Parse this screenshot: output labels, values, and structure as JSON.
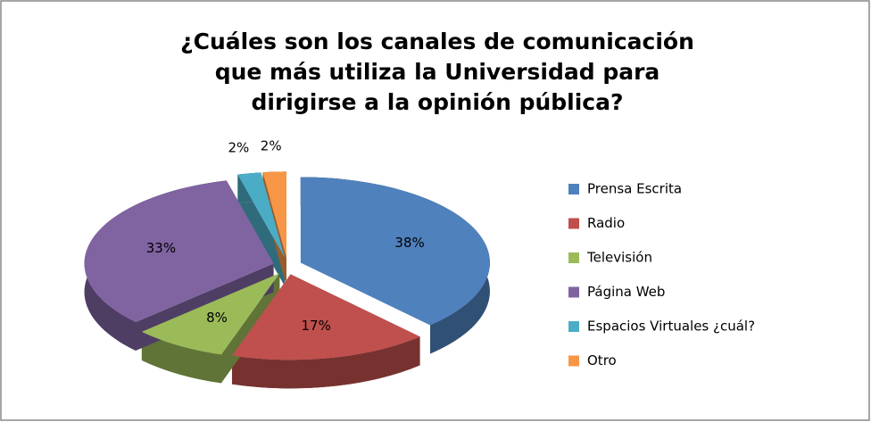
{
  "chart_data": {
    "type": "pie",
    "title": "¿Cuáles son los canales de comunicación que más utiliza la Universidad para dirigirse a la opinión pública?",
    "categories": [
      "Prensa Escrita",
      "Radio",
      "Televisión",
      "Página Web",
      "Espacios Virtuales ¿cuál?",
      "Otro"
    ],
    "values": [
      38,
      17,
      8,
      33,
      2,
      2
    ],
    "value_labels": [
      "38%",
      "17%",
      "8%",
      "33%",
      "2%",
      "2%"
    ],
    "colors": [
      "#4f81bd",
      "#c0504d",
      "#9bbb59",
      "#8064a2",
      "#4bacc6",
      "#f79646"
    ],
    "legend": "right"
  }
}
